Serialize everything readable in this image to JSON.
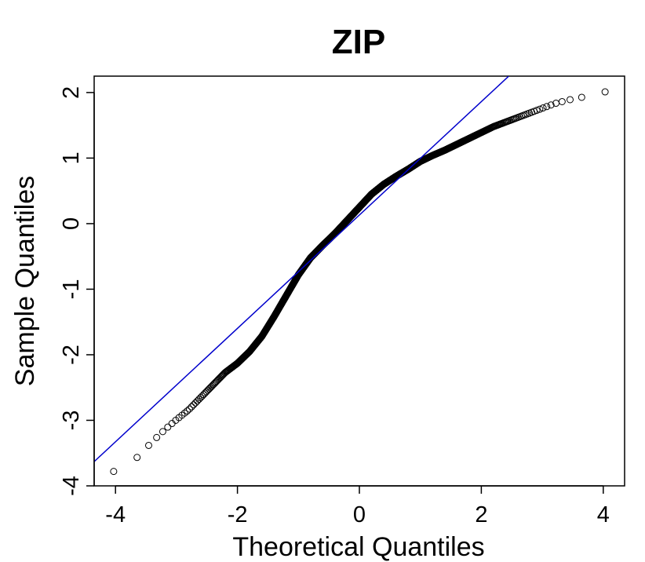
{
  "chart_data": {
    "type": "scatter",
    "title": "ZIP",
    "xlabel": "Theoretical Quantiles",
    "ylabel": "Sample Quantiles",
    "xlim": [
      -4.35,
      4.35
    ],
    "ylim": [
      -4.0,
      2.25
    ],
    "x_ticks": [
      -4,
      -2,
      0,
      2,
      4
    ],
    "x_tick_labels": [
      "-4",
      "-2",
      "0",
      "2",
      "4"
    ],
    "y_ticks": [
      -4,
      -3,
      -2,
      -1,
      0,
      1,
      2
    ],
    "y_tick_labels": [
      "-4",
      "-3",
      "-2",
      "-1",
      "0",
      "1",
      "2"
    ],
    "grid": false,
    "legend": "none",
    "point_color": "#000000",
    "qq_line": {
      "x": [
        -4.35,
        2.45
      ],
      "y": [
        -3.63,
        2.25
      ],
      "color": "#0000cc"
    },
    "quantile_curve": {
      "x": [
        -4.03,
        -3.8,
        -3.6,
        -3.4,
        -3.2,
        -3.0,
        -2.8,
        -2.6,
        -2.4,
        -2.2,
        -2.0,
        -1.8,
        -1.6,
        -1.4,
        -1.2,
        -1.0,
        -0.8,
        -0.6,
        -0.4,
        -0.2,
        0.0,
        0.2,
        0.4,
        0.6,
        0.8,
        1.0,
        1.2,
        1.4,
        1.6,
        1.8,
        2.0,
        2.2,
        2.4,
        2.6,
        2.8,
        3.0,
        3.2,
        3.4,
        3.6,
        3.8,
        4.03
      ],
      "y": [
        -3.78,
        -3.72,
        -3.52,
        -3.33,
        -3.15,
        -2.99,
        -2.84,
        -2.65,
        -2.46,
        -2.27,
        -2.13,
        -1.95,
        -1.72,
        -1.42,
        -1.1,
        -0.78,
        -0.52,
        -0.33,
        -0.15,
        0.05,
        0.25,
        0.45,
        0.6,
        0.72,
        0.83,
        0.95,
        1.04,
        1.12,
        1.21,
        1.3,
        1.39,
        1.48,
        1.55,
        1.62,
        1.69,
        1.76,
        1.83,
        1.88,
        1.92,
        1.95,
        2.01
      ]
    },
    "n_points": 1200
  }
}
